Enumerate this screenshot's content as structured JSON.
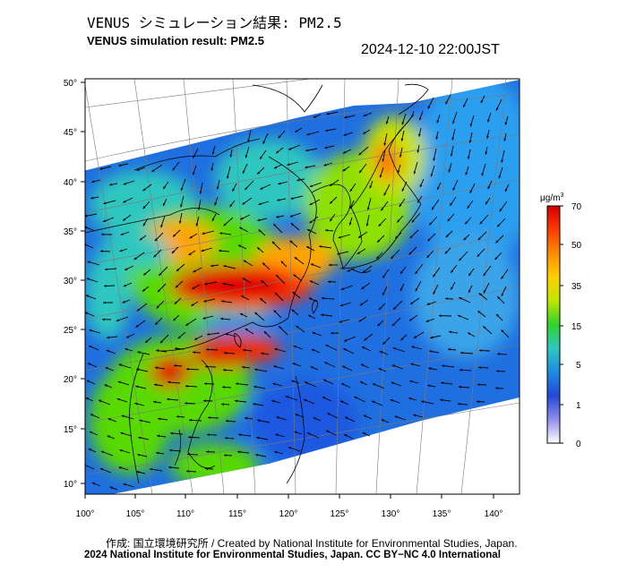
{
  "header": {
    "title_jp": "VENUS シミュレーション結果: PM2.5",
    "title_en": "VENUS simulation result: PM2.5",
    "timestamp": "2024-12-10 22:00JST"
  },
  "map": {
    "region": "East Asia",
    "lon_ticks": [
      "100°",
      "105°",
      "110°",
      "115°",
      "120°",
      "125°",
      "130°",
      "135°",
      "140°"
    ],
    "lat_ticks": [
      "50°",
      "45°",
      "40°",
      "35°",
      "30°",
      "25°",
      "20°",
      "15°",
      "10°"
    ],
    "layers": [
      "pm2.5-concentration-field",
      "wind-vectors",
      "coastlines",
      "graticule"
    ]
  },
  "legend": {
    "unit_prefix": "μg/m",
    "unit_sup": "3",
    "labels": [
      "70",
      "50",
      "35",
      "15",
      "5",
      "1",
      "0"
    ],
    "colors": [
      "#d50000",
      "#ff5500",
      "#ffa500",
      "#e7e600",
      "#59d900",
      "#2ec7bf",
      "#1c8de2",
      "#2a4fe0",
      "#a9a9f2",
      "#ffffff"
    ]
  },
  "footer": {
    "credit": "作成: 国立環境研究所 / Created by National Institute for Environmental Studies, Japan.",
    "copyright": "2024 National Institute for Environmental Studies, Japan. CC BY−NC 4.0 International"
  }
}
